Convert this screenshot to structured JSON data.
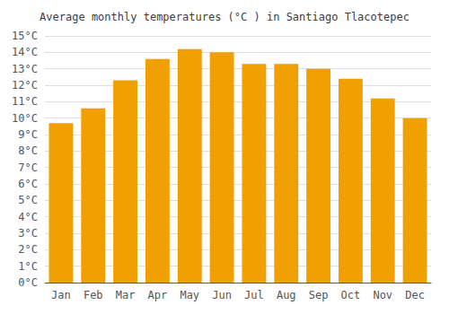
{
  "chart_data": {
    "type": "bar",
    "title": "Average monthly temperatures (°C ) in Santiago Tlacotepec",
    "categories": [
      "Jan",
      "Feb",
      "Mar",
      "Apr",
      "May",
      "Jun",
      "Jul",
      "Aug",
      "Sep",
      "Oct",
      "Nov",
      "Dec"
    ],
    "values": [
      9.7,
      10.6,
      12.3,
      13.6,
      14.2,
      14.0,
      13.3,
      13.3,
      13.0,
      12.4,
      11.2,
      10.0
    ],
    "color": "#F0A000",
    "ylim": [
      0,
      15
    ],
    "yticks": [
      {
        "value": 0,
        "label": "0°C"
      },
      {
        "value": 1,
        "label": "1°C"
      },
      {
        "value": 2,
        "label": "2°C"
      },
      {
        "value": 3,
        "label": "3°C"
      },
      {
        "value": 4,
        "label": "4°C"
      },
      {
        "value": 5,
        "label": "5°C"
      },
      {
        "value": 6,
        "label": "6°C"
      },
      {
        "value": 7,
        "label": "7°C"
      },
      {
        "value": 8,
        "label": "8°C"
      },
      {
        "value": 9,
        "label": "9°C"
      },
      {
        "value": 10,
        "label": "10°C"
      },
      {
        "value": 11,
        "label": "11°C"
      },
      {
        "value": 12,
        "label": "12°C"
      },
      {
        "value": 13,
        "label": "13°C"
      },
      {
        "value": 14,
        "label": "14°C"
      },
      {
        "value": 15,
        "label": "15°C"
      }
    ],
    "grid": true
  }
}
